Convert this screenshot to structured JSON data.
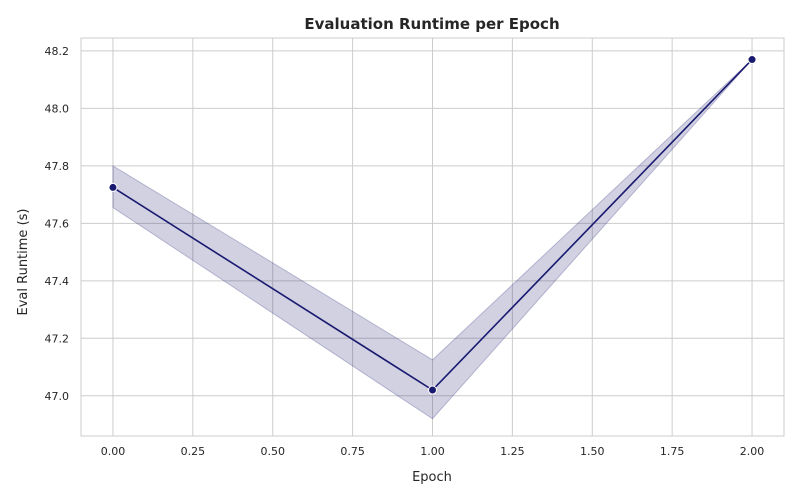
{
  "chart_data": {
    "type": "line",
    "title": "Evaluation Runtime per Epoch",
    "xlabel": "Epoch",
    "ylabel": "Eval Runtime (s)",
    "xlim": [
      -0.1,
      2.1
    ],
    "ylim": [
      46.86,
      48.245
    ],
    "xticks": [
      "0.00",
      "0.25",
      "0.50",
      "0.75",
      "1.00",
      "1.25",
      "1.50",
      "1.75",
      "2.00"
    ],
    "yticks": [
      "47.0",
      "47.2",
      "47.4",
      "47.6",
      "47.8",
      "48.0",
      "48.2"
    ],
    "grid": true,
    "series": [
      {
        "x": [
          0,
          1,
          2
        ],
        "y": [
          47.725,
          47.02,
          48.17
        ],
        "ci_lower": [
          47.655,
          46.92,
          48.17
        ],
        "ci_upper": [
          47.8,
          47.125,
          48.17
        ]
      }
    ],
    "colors": {
      "line": "#191970",
      "band": "#191970",
      "grid": "#cccccc",
      "spine": "#cccccc"
    }
  }
}
